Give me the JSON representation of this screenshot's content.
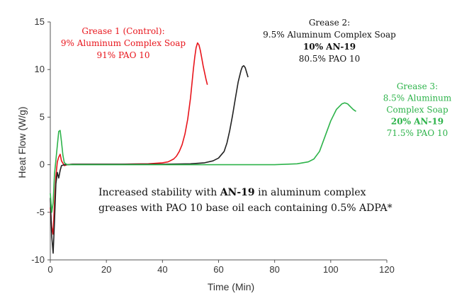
{
  "chart_data": {
    "type": "line",
    "xlabel": "Time (Min)",
    "ylabel": "Heat Flow (W/g)",
    "xlim": [
      0,
      120
    ],
    "ylim": [
      -10,
      15
    ],
    "x_ticks": [
      "0",
      "20",
      "40",
      "60",
      "80",
      "100",
      "120"
    ],
    "y_ticks": [
      "15",
      "10",
      "5",
      "0",
      "-5",
      "-10"
    ],
    "grid": false,
    "series": [
      {
        "name": "Grease 1 (Control)",
        "color": "#e8141b",
        "x": [
          0,
          0.5,
          1,
          1.5,
          2,
          2.5,
          3,
          3.5,
          4,
          5,
          6,
          8,
          10,
          15,
          20,
          25,
          30,
          35,
          40,
          42,
          44,
          45,
          46,
          47,
          48,
          49,
          50,
          50.5,
          51,
          51.5,
          52,
          52.5,
          53,
          53.5,
          54,
          54.5,
          55,
          55.5,
          56
        ],
        "y": [
          -4.5,
          -6.5,
          -7.3,
          -4,
          -1.2,
          0.3,
          0.8,
          1.1,
          0.4,
          -0.1,
          0,
          0.05,
          0.05,
          0.05,
          0.05,
          0.05,
          0.08,
          0.1,
          0.2,
          0.3,
          0.6,
          0.9,
          1.4,
          2.1,
          3.2,
          4.8,
          7.0,
          8.5,
          10.0,
          11.3,
          12.3,
          12.8,
          12.6,
          12.0,
          11.2,
          10.4,
          9.7,
          9.0,
          8.4
        ]
      },
      {
        "name": "Grease 2",
        "color": "#222222",
        "x": [
          0,
          0.5,
          1,
          1.5,
          2,
          2.5,
          3,
          3.5,
          4,
          5,
          6,
          8,
          10,
          20,
          30,
          40,
          50,
          55,
          58,
          60,
          62,
          63,
          64,
          65,
          66,
          67,
          68,
          68.5,
          69,
          69.5,
          70,
          70.5
        ],
        "y": [
          -3.5,
          -7.5,
          -9.3,
          -6,
          -2,
          -0.8,
          -1.4,
          -0.6,
          -0.1,
          0,
          0,
          0.05,
          0.05,
          0.05,
          0.05,
          0.05,
          0.1,
          0.2,
          0.4,
          0.7,
          1.4,
          2.3,
          3.6,
          5.2,
          7.0,
          8.7,
          9.9,
          10.3,
          10.4,
          10.2,
          9.7,
          9.2
        ]
      },
      {
        "name": "Grease 3",
        "color": "#2db34a",
        "x": [
          0,
          0.5,
          1,
          1.5,
          2,
          2.5,
          3,
          3.5,
          4,
          4.5,
          5,
          6,
          8,
          10,
          20,
          40,
          60,
          80,
          88,
          92,
          94,
          96,
          98,
          100,
          102,
          104,
          105,
          106,
          107,
          108,
          109
        ],
        "y": [
          -3,
          -5,
          -4,
          -1,
          0.5,
          2,
          3.5,
          3.6,
          2.4,
          1,
          0.2,
          0,
          0,
          0,
          0,
          0,
          0,
          0,
          0.1,
          0.3,
          0.6,
          1.4,
          3.0,
          4.6,
          5.8,
          6.4,
          6.5,
          6.4,
          6.1,
          5.8,
          5.6
        ]
      }
    ],
    "annotations": [
      {
        "id": "grease1",
        "color": "#e8141b",
        "lines": [
          {
            "text": "Grease 1 (Control):",
            "bold": false
          },
          {
            "text": "9% Aluminum Complex Soap",
            "bold": false
          },
          {
            "text": "91% PAO 10",
            "bold": false
          }
        ]
      },
      {
        "id": "grease2",
        "color": "#111111",
        "lines": [
          {
            "text": "Grease 2:",
            "bold": false
          },
          {
            "text": "9.5% Aluminum Complex Soap",
            "bold": false
          },
          {
            "text": "10% AN-19",
            "bold": true
          },
          {
            "text": "80.5% PAO 10",
            "bold": false
          }
        ]
      },
      {
        "id": "grease3",
        "color": "#2db34a",
        "lines": [
          {
            "text": "Grease 3:",
            "bold": false
          },
          {
            "text": "8.5% Aluminum",
            "bold": false
          },
          {
            "text": "Complex Soap",
            "bold": false
          },
          {
            "text": "20% AN-19",
            "bold": true
          },
          {
            "text": "71.5% PAO 10",
            "bold": false
          }
        ]
      }
    ],
    "note": {
      "line1_before": "Increased stability with ",
      "line1_bold": "AN-19",
      "line1_after": " in aluminum complex",
      "line2": "greases with PAO 10 base oil each containing 0.5% ADPA*"
    }
  }
}
